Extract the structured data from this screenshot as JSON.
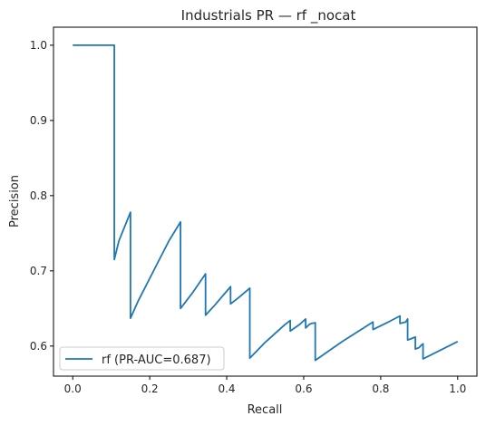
{
  "chart_data": {
    "type": "line",
    "title": "Industrials PR — rf _nocat",
    "xlabel": "Recall",
    "ylabel": "Precision",
    "xlim": [
      -0.05,
      1.05
    ],
    "ylim": [
      0.56,
      1.024
    ],
    "xticks": [
      0.0,
      0.2,
      0.4,
      0.6,
      0.8,
      1.0
    ],
    "xtick_labels": [
      "0.0",
      "0.2",
      "0.4",
      "0.6",
      "0.8",
      "1.0"
    ],
    "yticks": [
      0.6,
      0.7,
      0.8,
      0.9,
      1.0
    ],
    "ytick_labels": [
      "0.6",
      "0.7",
      "0.8",
      "0.9",
      "1.0"
    ],
    "grid": false,
    "legend_position": "lower-left",
    "series": [
      {
        "name": "rf (PR-AUC=0.687)",
        "color": "#1f77b4",
        "x": [
          0.0,
          0.108,
          0.108,
          0.12,
          0.15,
          0.15,
          0.17,
          0.2,
          0.25,
          0.28,
          0.28,
          0.31,
          0.345,
          0.345,
          0.37,
          0.41,
          0.41,
          0.43,
          0.46,
          0.46,
          0.5,
          0.55,
          0.565,
          0.565,
          0.59,
          0.605,
          0.605,
          0.615,
          0.62,
          0.63,
          0.63,
          0.7,
          0.78,
          0.78,
          0.82,
          0.85,
          0.85,
          0.865,
          0.87,
          0.87,
          0.88,
          0.89,
          0.89,
          0.9,
          0.905,
          0.91,
          0.91,
          1.0
        ],
        "y": [
          1.0,
          1.0,
          0.715,
          0.74,
          0.778,
          0.637,
          0.66,
          0.69,
          0.74,
          0.765,
          0.65,
          0.67,
          0.696,
          0.641,
          0.655,
          0.679,
          0.656,
          0.664,
          0.677,
          0.584,
          0.605,
          0.628,
          0.634,
          0.62,
          0.629,
          0.636,
          0.624,
          0.629,
          0.63,
          0.631,
          0.581,
          0.606,
          0.632,
          0.622,
          0.632,
          0.64,
          0.63,
          0.632,
          0.636,
          0.608,
          0.61,
          0.612,
          0.596,
          0.598,
          0.601,
          0.603,
          0.583,
          0.606
        ]
      }
    ]
  }
}
